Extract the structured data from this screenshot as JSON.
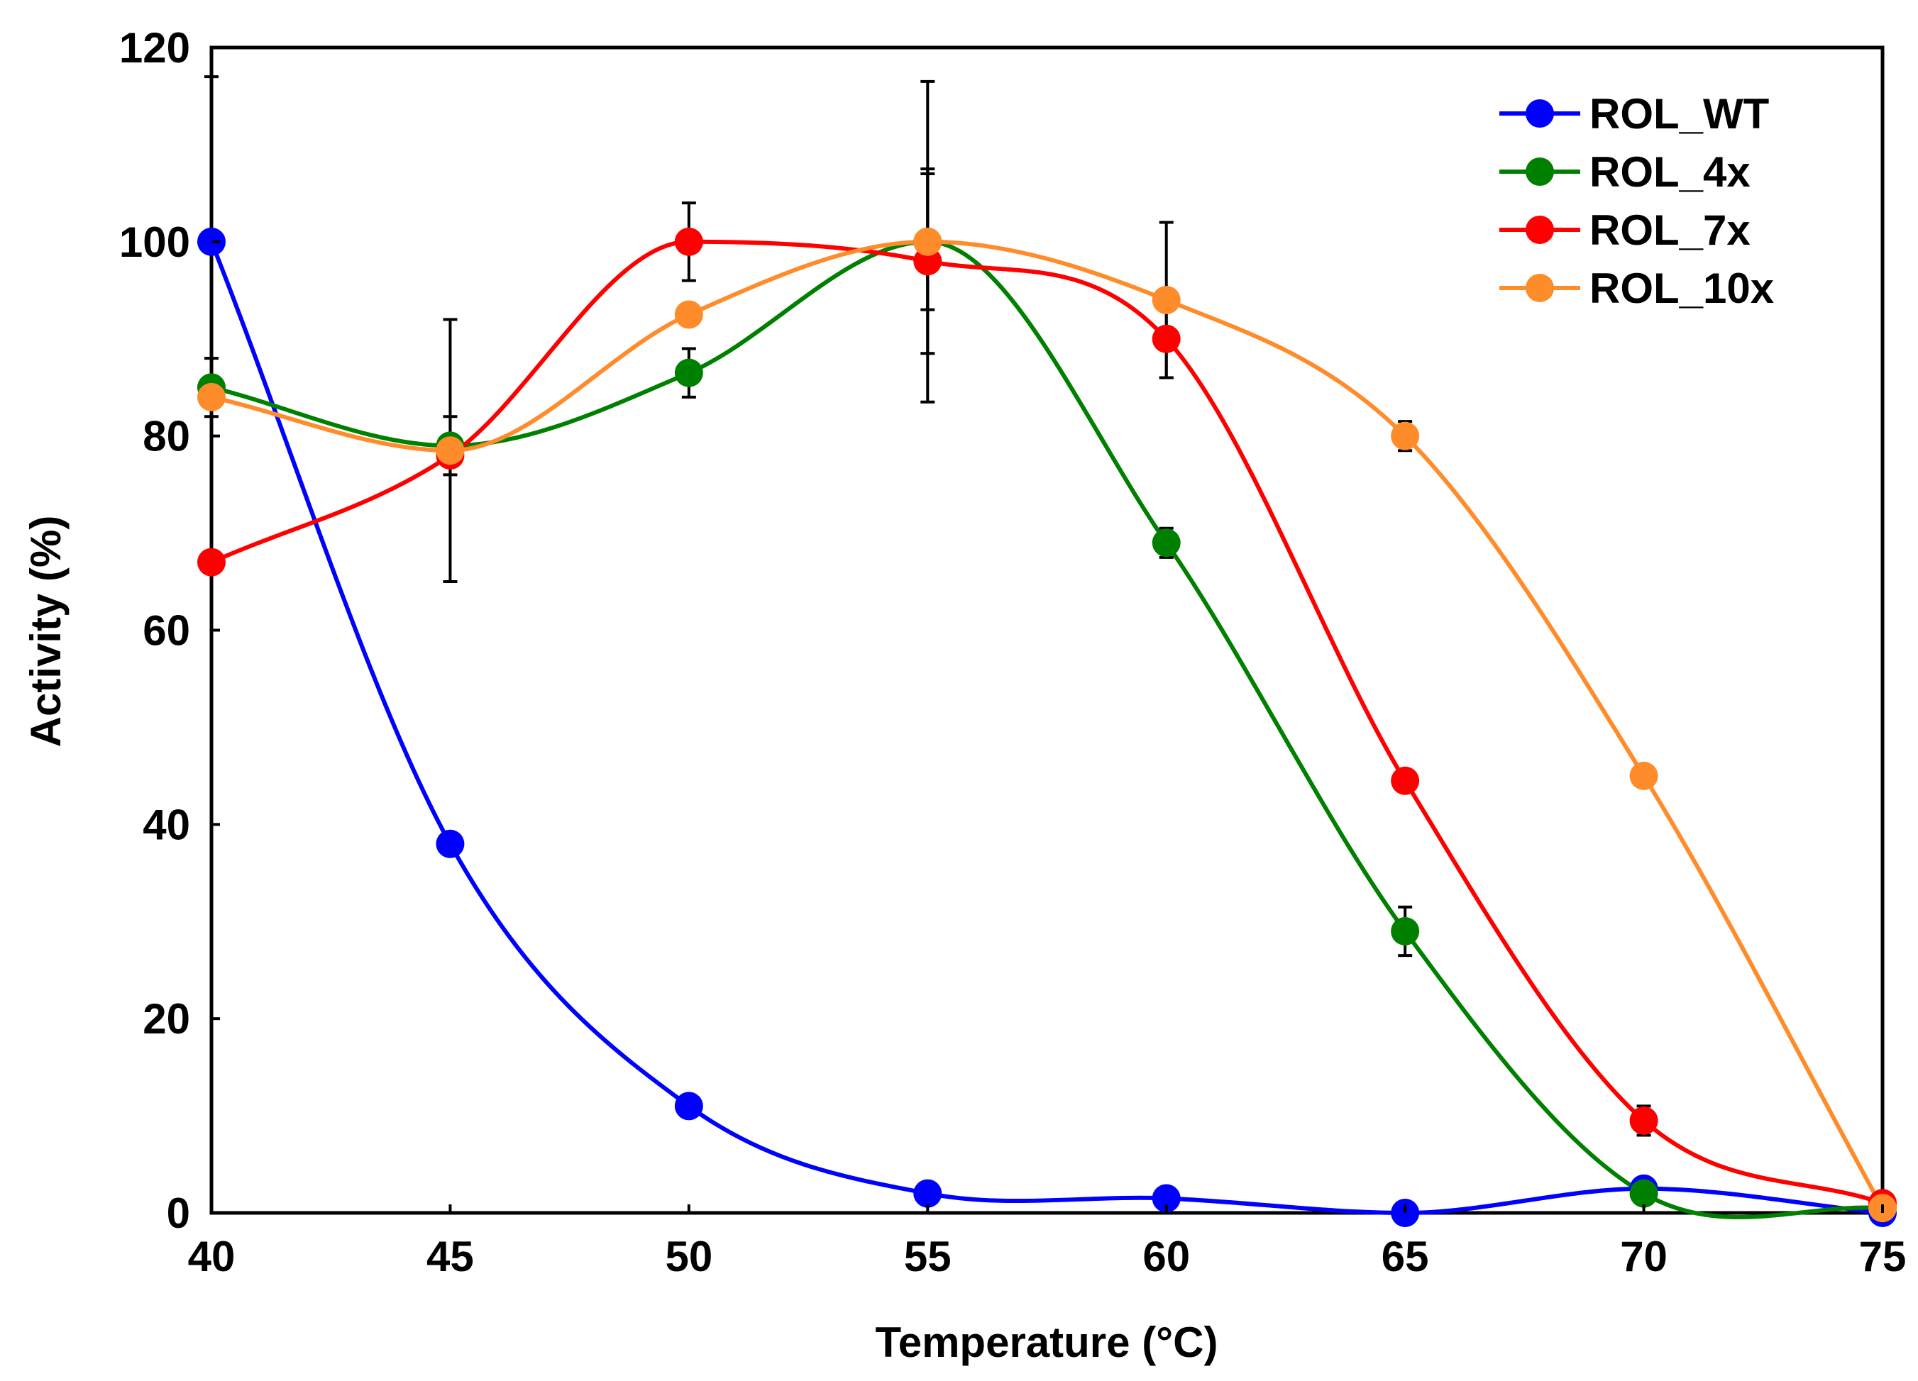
{
  "chart_data": {
    "type": "line",
    "title": "",
    "xlabel": "Temperature (°C)",
    "ylabel": "Activity (%)",
    "xlim": [
      40,
      75
    ],
    "ylim": [
      0,
      120
    ],
    "xticks": [
      40,
      45,
      50,
      55,
      60,
      65,
      70,
      75
    ],
    "yticks": [
      0,
      20,
      40,
      60,
      80,
      100,
      120
    ],
    "legend_position": "top-right",
    "x": [
      40,
      45,
      50,
      55,
      60,
      65,
      70,
      75
    ],
    "series": [
      {
        "name": "ROL_WT",
        "color": "#0000ff",
        "values": [
          100,
          38,
          11,
          2,
          1.5,
          0,
          2.5,
          0
        ],
        "errors": [
          17,
          0,
          0,
          0,
          0,
          0,
          0,
          0
        ]
      },
      {
        "name": "ROL_4x",
        "color": "#008000",
        "values": [
          85,
          79,
          86.5,
          100,
          69,
          29,
          2,
          0.5
        ],
        "errors": [
          3,
          3,
          2.5,
          7,
          1.5,
          2.5,
          0,
          0
        ]
      },
      {
        "name": "ROL_7x",
        "color": "#ff0000",
        "values": [
          67,
          78,
          100,
          98,
          90,
          44.5,
          9.5,
          1
        ],
        "errors": [
          0,
          0,
          4,
          9.5,
          4,
          0,
          1.5,
          0
        ]
      },
      {
        "name": "ROL_10x",
        "color": "#ff8c2a",
        "values": [
          84,
          78.5,
          92.5,
          100,
          94,
          80,
          45,
          0.5
        ],
        "errors": [
          0,
          13.5,
          0,
          16.5,
          8,
          1.5,
          0,
          0
        ]
      }
    ]
  }
}
